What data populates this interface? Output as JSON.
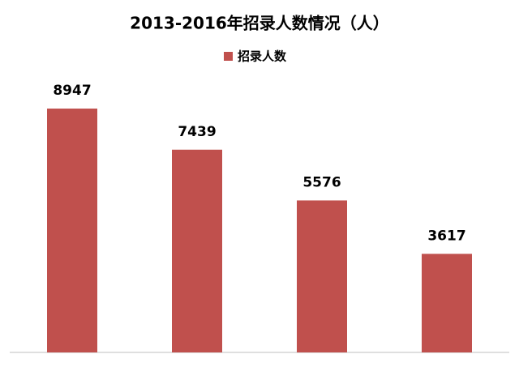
{
  "chart_data": {
    "type": "bar",
    "title": "2013-2016年招录人数情况（人）",
    "categories": [
      null,
      null,
      null,
      null
    ],
    "series": [
      {
        "name": "招录人数",
        "color": "#c0504d",
        "values": [
          8947,
          7439,
          5576,
          3617
        ]
      }
    ]
  }
}
